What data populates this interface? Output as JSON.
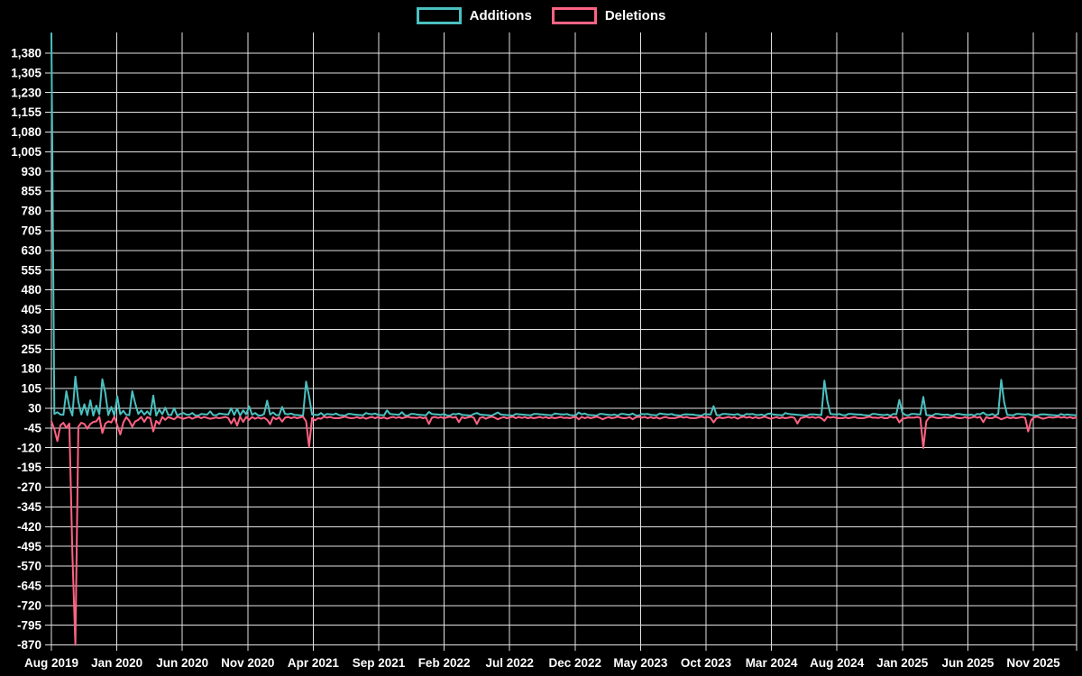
{
  "chart_data": {
    "type": "line",
    "title": "",
    "background": "#000000",
    "grid": true,
    "grid_color": "#e2e2e2",
    "text_color": "#ffffff",
    "legend_position": "top center",
    "x_axis": {
      "unit": "week",
      "tick_labels": [
        "Aug 2019",
        "Jan 2020",
        "Jun 2020",
        "Nov 2020",
        "Apr 2021",
        "Sep 2021",
        "Feb 2022",
        "Jul 2022",
        "Dec 2022",
        "May 2023",
        "Oct 2023",
        "Mar 2024",
        "Aug 2024",
        "Jan 2025",
        "Jun 2025",
        "Nov 2025"
      ]
    },
    "y_axis": {
      "max": 1380,
      "min": -870,
      "step": 75,
      "tick_labels": [
        "1,380",
        "1,305",
        "1,230",
        "1,155",
        "1,080",
        "1,005",
        "930",
        "855",
        "780",
        "705",
        "630",
        "555",
        "480",
        "405",
        "330",
        "255",
        "180",
        "105",
        "30",
        "-45",
        "-120",
        "-195",
        "-270",
        "-345",
        "-420",
        "-495",
        "-570",
        "-645",
        "-720",
        "-795",
        "-870"
      ]
    },
    "n_weeks": 343,
    "series": [
      {
        "name": "Additions",
        "color": "#4bc0c0",
        "baseline": {
          "min": 2,
          "max": 8,
          "sign": 1
        },
        "points": {
          "0": 1455,
          "2": 15,
          "5": 95,
          "6": 35,
          "8": 150,
          "9": 55,
          "11": 45,
          "13": 60,
          "15": 40,
          "17": 140,
          "18": 88,
          "20": 35,
          "22": 75,
          "24": 20,
          "27": 95,
          "28": 48,
          "30": 22,
          "32": 18,
          "34": 78,
          "36": 25,
          "38": 32,
          "41": 30,
          "44": 12,
          "47": 12,
          "53": 18,
          "56": 10,
          "60": 30,
          "62": 28,
          "64": 22,
          "66": 37,
          "68": 12,
          "72": 59,
          "74": 14,
          "77": 35,
          "80": 10,
          "85": 131,
          "86": 75,
          "90": 12,
          "95": 10,
          "100": 8,
          "105": 12,
          "108": 10,
          "112": 22,
          "117": 15,
          "121": 8,
          "126": 16,
          "131": 8,
          "136": 10,
          "142": 12,
          "149": 14,
          "155": 8,
          "161": 8,
          "168": 10,
          "172": 8,
          "176": 14,
          "178": 10,
          "184": 8,
          "188": 6,
          "191": 8,
          "194": 10,
          "199": 8,
          "203": 10,
          "207": 8,
          "211": 6,
          "214": 6,
          "218": 8,
          "221": 38,
          "224": 8,
          "229": 8,
          "234": 8,
          "237": 6,
          "240": 10,
          "245": 12,
          "253": 6,
          "258": 135,
          "259": 55,
          "263": 8,
          "266": 8,
          "270": 6,
          "275": 8,
          "279": 6,
          "283": 62,
          "284": 14,
          "287": 8,
          "291": 73,
          "296": 8,
          "299": 6,
          "303": 8,
          "307": 6,
          "311": 14,
          "314": 8,
          "317": 138,
          "318": 52,
          "322": 8,
          "326": 8,
          "330": 6,
          "334": 4,
          "338": 4
        }
      },
      {
        "name": "Deletions",
        "color": "#ff6384",
        "baseline": {
          "min": 2,
          "max": 8,
          "sign": -1
        },
        "points": {
          "0": -20,
          "1": -50,
          "2": -95,
          "3": -35,
          "4": -25,
          "5": -45,
          "6": -28,
          "7": -525,
          "8": -870,
          "9": -40,
          "10": -25,
          "11": -30,
          "12": -48,
          "13": -30,
          "14": -22,
          "15": -20,
          "17": -64,
          "18": -28,
          "19": -20,
          "20": -24,
          "22": -35,
          "23": -70,
          "24": -24,
          "26": -18,
          "27": -40,
          "28": -20,
          "29": -14,
          "31": -22,
          "34": -58,
          "35": -18,
          "36": -30,
          "38": -14,
          "41": -12,
          "44": -10,
          "47": -10,
          "50": -8,
          "53": -10,
          "56": -8,
          "60": -28,
          "62": -36,
          "64": -22,
          "66": -14,
          "68": -10,
          "70": -10,
          "72": -14,
          "73": -31,
          "75": -12,
          "77": -21,
          "80": -8,
          "85": -20,
          "86": -116,
          "88": -16,
          "90": -10,
          "95": -8,
          "100": -8,
          "105": -10,
          "108": -8,
          "112": -10,
          "117": -8,
          "121": -6,
          "126": -30,
          "131": -8,
          "136": -23,
          "142": -30,
          "145": -10,
          "149": -12,
          "155": -8,
          "161": -8,
          "168": -8,
          "172": -6,
          "176": -12,
          "178": -8,
          "184": -12,
          "188": -6,
          "191": -8,
          "194": -12,
          "199": -8,
          "203": -10,
          "207": -8,
          "211": -6,
          "214": -8,
          "218": -6,
          "221": -24,
          "224": -8,
          "229": -10,
          "234": -8,
          "237": -6,
          "240": -10,
          "245": -8,
          "249": -28,
          "253": -6,
          "258": -18,
          "263": -8,
          "266": -8,
          "270": -8,
          "275": -6,
          "279": -8,
          "283": -24,
          "284": -10,
          "287": -6,
          "291": -121,
          "292": -20,
          "296": -8,
          "299": -6,
          "303": -8,
          "307": -6,
          "311": -23,
          "314": -8,
          "317": -12,
          "318": -8,
          "322": -8,
          "326": -58,
          "327": -15,
          "331": -10,
          "334": -6,
          "338": -4
        }
      }
    ]
  }
}
